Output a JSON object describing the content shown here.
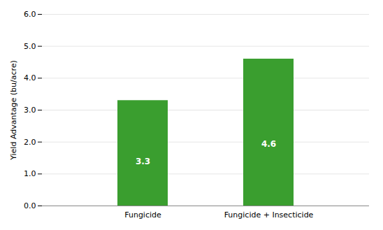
{
  "chart_data": {
    "type": "bar",
    "categories": [
      "Fungicide",
      "Fungicide + Insecticide"
    ],
    "values": [
      3.3,
      4.6
    ],
    "color": "#3a9e2f",
    "ylabel": "Yield Advantage (bu/acre)",
    "ylim": [
      0,
      6
    ],
    "yticks": [
      0,
      1,
      2,
      3,
      4,
      5,
      6
    ],
    "grid": true,
    "data_labels": true
  }
}
